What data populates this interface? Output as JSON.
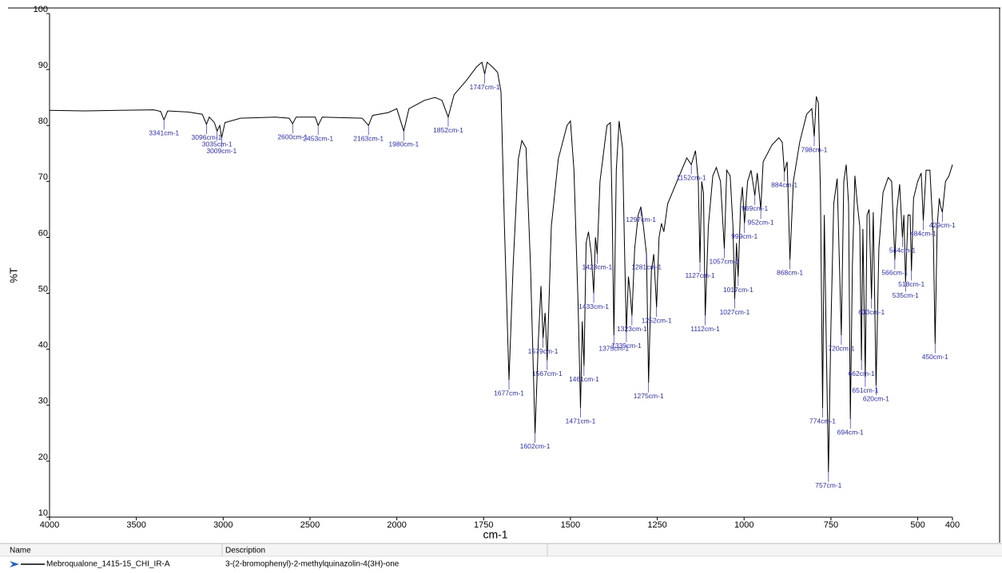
{
  "chart_data": {
    "type": "line",
    "x_label": "cm-1",
    "y_label": "%T",
    "xlim": [
      4000,
      400
    ],
    "x_scale_break": 2000,
    "xticks": [
      4000,
      3500,
      3000,
      2500,
      2000,
      1750,
      1500,
      1250,
      1000,
      750,
      500,
      400
    ],
    "ylim": [
      10,
      100
    ],
    "yticks": [
      10,
      20,
      30,
      40,
      50,
      60,
      70,
      80,
      90,
      100
    ],
    "series": [
      {
        "name": "Mebroqualone_1415-15_CHI_IR-A",
        "description": "3-(2-bromophenyl)-2-methylquinazolin-4(3H)-one",
        "color": "#000000",
        "x": [
          4000,
          3800,
          3600,
          3400,
          3360,
          3341,
          3320,
          3200,
          3120,
          3096,
          3080,
          3050,
          3035,
          3020,
          3009,
          2990,
          2900,
          2700,
          2620,
          2600,
          2580,
          2470,
          2453,
          2430,
          2200,
          2163,
          2140,
          2050,
          2000,
          1980,
          1965,
          1920,
          1890,
          1870,
          1852,
          1835,
          1800,
          1770,
          1755,
          1747,
          1740,
          1725,
          1710,
          1700,
          1690,
          1677,
          1665,
          1650,
          1640,
          1628,
          1615,
          1602,
          1592,
          1585,
          1579,
          1573,
          1567,
          1555,
          1535,
          1510,
          1500,
          1490,
          1478,
          1471,
          1466,
          1461,
          1455,
          1448,
          1440,
          1433,
          1428,
          1423,
          1415,
          1395,
          1385,
          1380,
          1375,
          1368,
          1360,
          1350,
          1345,
          1339,
          1333,
          1328,
          1323,
          1315,
          1305,
          1297,
          1290,
          1281,
          1275,
          1267,
          1260,
          1252,
          1245,
          1238,
          1231,
          1220,
          1200,
          1180,
          1165,
          1152,
          1140,
          1132,
          1127,
          1122,
          1117,
          1112,
          1103,
          1090,
          1080,
          1068,
          1057,
          1050,
          1040,
          1032,
          1027,
          1022,
          1017,
          1010,
          1005,
          999,
          990,
          980,
          969,
          962,
          952,
          945,
          920,
          900,
          890,
          884,
          876,
          868,
          858,
          840,
          820,
          805,
          798,
          792,
          786,
          780,
          774,
          769,
          763,
          757,
          750,
          742,
          732,
          720,
          713,
          706,
          699,
          694,
          688,
          681,
          674,
          667,
          662,
          658,
          651,
          646,
          640,
          633,
          628,
          620,
          612,
          600,
          585,
          575,
          566,
          560,
          552,
          544,
          540,
          535,
          528,
          522,
          518,
          512,
          500,
          490,
          484,
          476,
          465,
          455,
          450,
          444,
          438,
          434,
          429,
          420,
          410,
          400
        ],
        "values": [
          82.7,
          82.6,
          82.7,
          82.8,
          82.5,
          81,
          82.6,
          82.4,
          82,
          80.2,
          81.5,
          80.5,
          79,
          80,
          77.8,
          80.5,
          81.3,
          81.5,
          81.3,
          80.3,
          81.5,
          81.5,
          80,
          81.5,
          81.3,
          80,
          81.8,
          82.3,
          83,
          79,
          83,
          84.5,
          85,
          84.5,
          81.5,
          85.5,
          88,
          90.5,
          91.3,
          89.2,
          91.3,
          90.5,
          89.5,
          86,
          62,
          34.5,
          55,
          74,
          77.3,
          76,
          55,
          25,
          42,
          51.3,
          42,
          46.5,
          38,
          62,
          74,
          80,
          80.8,
          72,
          48,
          29.5,
          45,
          37,
          59,
          61,
          57,
          50,
          60,
          57,
          70,
          80,
          80.5,
          65,
          42.5,
          72,
          80.8,
          76,
          60,
          43,
          53,
          50,
          46,
          58,
          64,
          65.5,
          62,
          57,
          34,
          54,
          57,
          47.5,
          60,
          62.5,
          61,
          66,
          69,
          72,
          74.2,
          73,
          75.5,
          70,
          55.5,
          70,
          68,
          46,
          62,
          71,
          72.5,
          70,
          58,
          72,
          71,
          62,
          49,
          59,
          53,
          66,
          69,
          62.5,
          70,
          72,
          67.5,
          71.5,
          65,
          73.5,
          76.5,
          77.8,
          77,
          71.7,
          73.5,
          56,
          70,
          77,
          82,
          83,
          78,
          85.2,
          84,
          68,
          29.5,
          64,
          40,
          18,
          44,
          66,
          70.5,
          42.5,
          70,
          73,
          66,
          27.5,
          55,
          71,
          66,
          62,
          38,
          61.5,
          35,
          64,
          65,
          49,
          64.5,
          33.5,
          58,
          68,
          70.7,
          70,
          56,
          65,
          69.5,
          60,
          64,
          52,
          64,
          64,
          54,
          67,
          70,
          71.5,
          63,
          72,
          72,
          60,
          41,
          62,
          67,
          65.5,
          64.5,
          70,
          71,
          73
        ]
      }
    ],
    "annotations": [
      {
        "x": 3341,
        "label": "3341cm-1"
      },
      {
        "x": 3096,
        "label": "3096cm-1"
      },
      {
        "x": 3035,
        "label": "3035cm-1"
      },
      {
        "x": 3009,
        "label": "3009cm-1"
      },
      {
        "x": 2600,
        "label": "2600cm-1"
      },
      {
        "x": 2453,
        "label": "2453cm-1"
      },
      {
        "x": 2163,
        "label": "2163cm-1"
      },
      {
        "x": 1980,
        "label": "1980cm-1"
      },
      {
        "x": 1852,
        "label": "1852cm-1"
      },
      {
        "x": 1747,
        "label": "1747cm-1"
      },
      {
        "x": 1677,
        "label": "1677cm-1"
      },
      {
        "x": 1602,
        "label": "1602cm-1"
      },
      {
        "x": 1579,
        "label": "1579cm-1"
      },
      {
        "x": 1567,
        "label": "1567cm-1"
      },
      {
        "x": 1471,
        "label": "1471cm-1"
      },
      {
        "x": 1461,
        "label": "1461cm-1"
      },
      {
        "x": 1433,
        "label": "1433cm-1"
      },
      {
        "x": 1423,
        "label": "1423cm-1"
      },
      {
        "x": 1375,
        "label": "1375cm-1"
      },
      {
        "x": 1339,
        "label": "1339cm-1"
      },
      {
        "x": 1323,
        "label": "1323cm-1"
      },
      {
        "x": 1297,
        "label": "1297cm-1"
      },
      {
        "x": 1281,
        "label": "1281cm-1"
      },
      {
        "x": 1275,
        "label": "1275cm-1"
      },
      {
        "x": 1252,
        "label": "1252cm-1"
      },
      {
        "x": 1152,
        "label": "1152cm-1"
      },
      {
        "x": 1127,
        "label": "1127cm-1"
      },
      {
        "x": 1112,
        "label": "1112cm-1"
      },
      {
        "x": 1057,
        "label": "1057cm-1"
      },
      {
        "x": 1027,
        "label": "1027cm-1"
      },
      {
        "x": 1017,
        "label": "1017cm-1"
      },
      {
        "x": 999,
        "label": "999cm-1"
      },
      {
        "x": 969,
        "label": "969cm-1"
      },
      {
        "x": 952,
        "label": "952cm-1"
      },
      {
        "x": 884,
        "label": "884cm-1"
      },
      {
        "x": 868,
        "label": "868cm-1"
      },
      {
        "x": 798,
        "label": "798cm-1"
      },
      {
        "x": 774,
        "label": "774cm-1"
      },
      {
        "x": 757,
        "label": "757cm-1"
      },
      {
        "x": 720,
        "label": "720cm-1"
      },
      {
        "x": 694,
        "label": "694cm-1"
      },
      {
        "x": 662,
        "label": "662cm-1"
      },
      {
        "x": 651,
        "label": "651cm-1"
      },
      {
        "x": 633,
        "label": "633cm-1"
      },
      {
        "x": 620,
        "label": "620cm-1"
      },
      {
        "x": 566,
        "label": "566cm-1"
      },
      {
        "x": 544,
        "label": "544cm-1"
      },
      {
        "x": 535,
        "label": "535cm-1"
      },
      {
        "x": 518,
        "label": "518cm-1"
      },
      {
        "x": 484,
        "label": "484cm-1"
      },
      {
        "x": 450,
        "label": "450cm-1"
      },
      {
        "x": 429,
        "label": "429cm-1"
      }
    ]
  },
  "table": {
    "columns": [
      "Name",
      "Description"
    ]
  }
}
